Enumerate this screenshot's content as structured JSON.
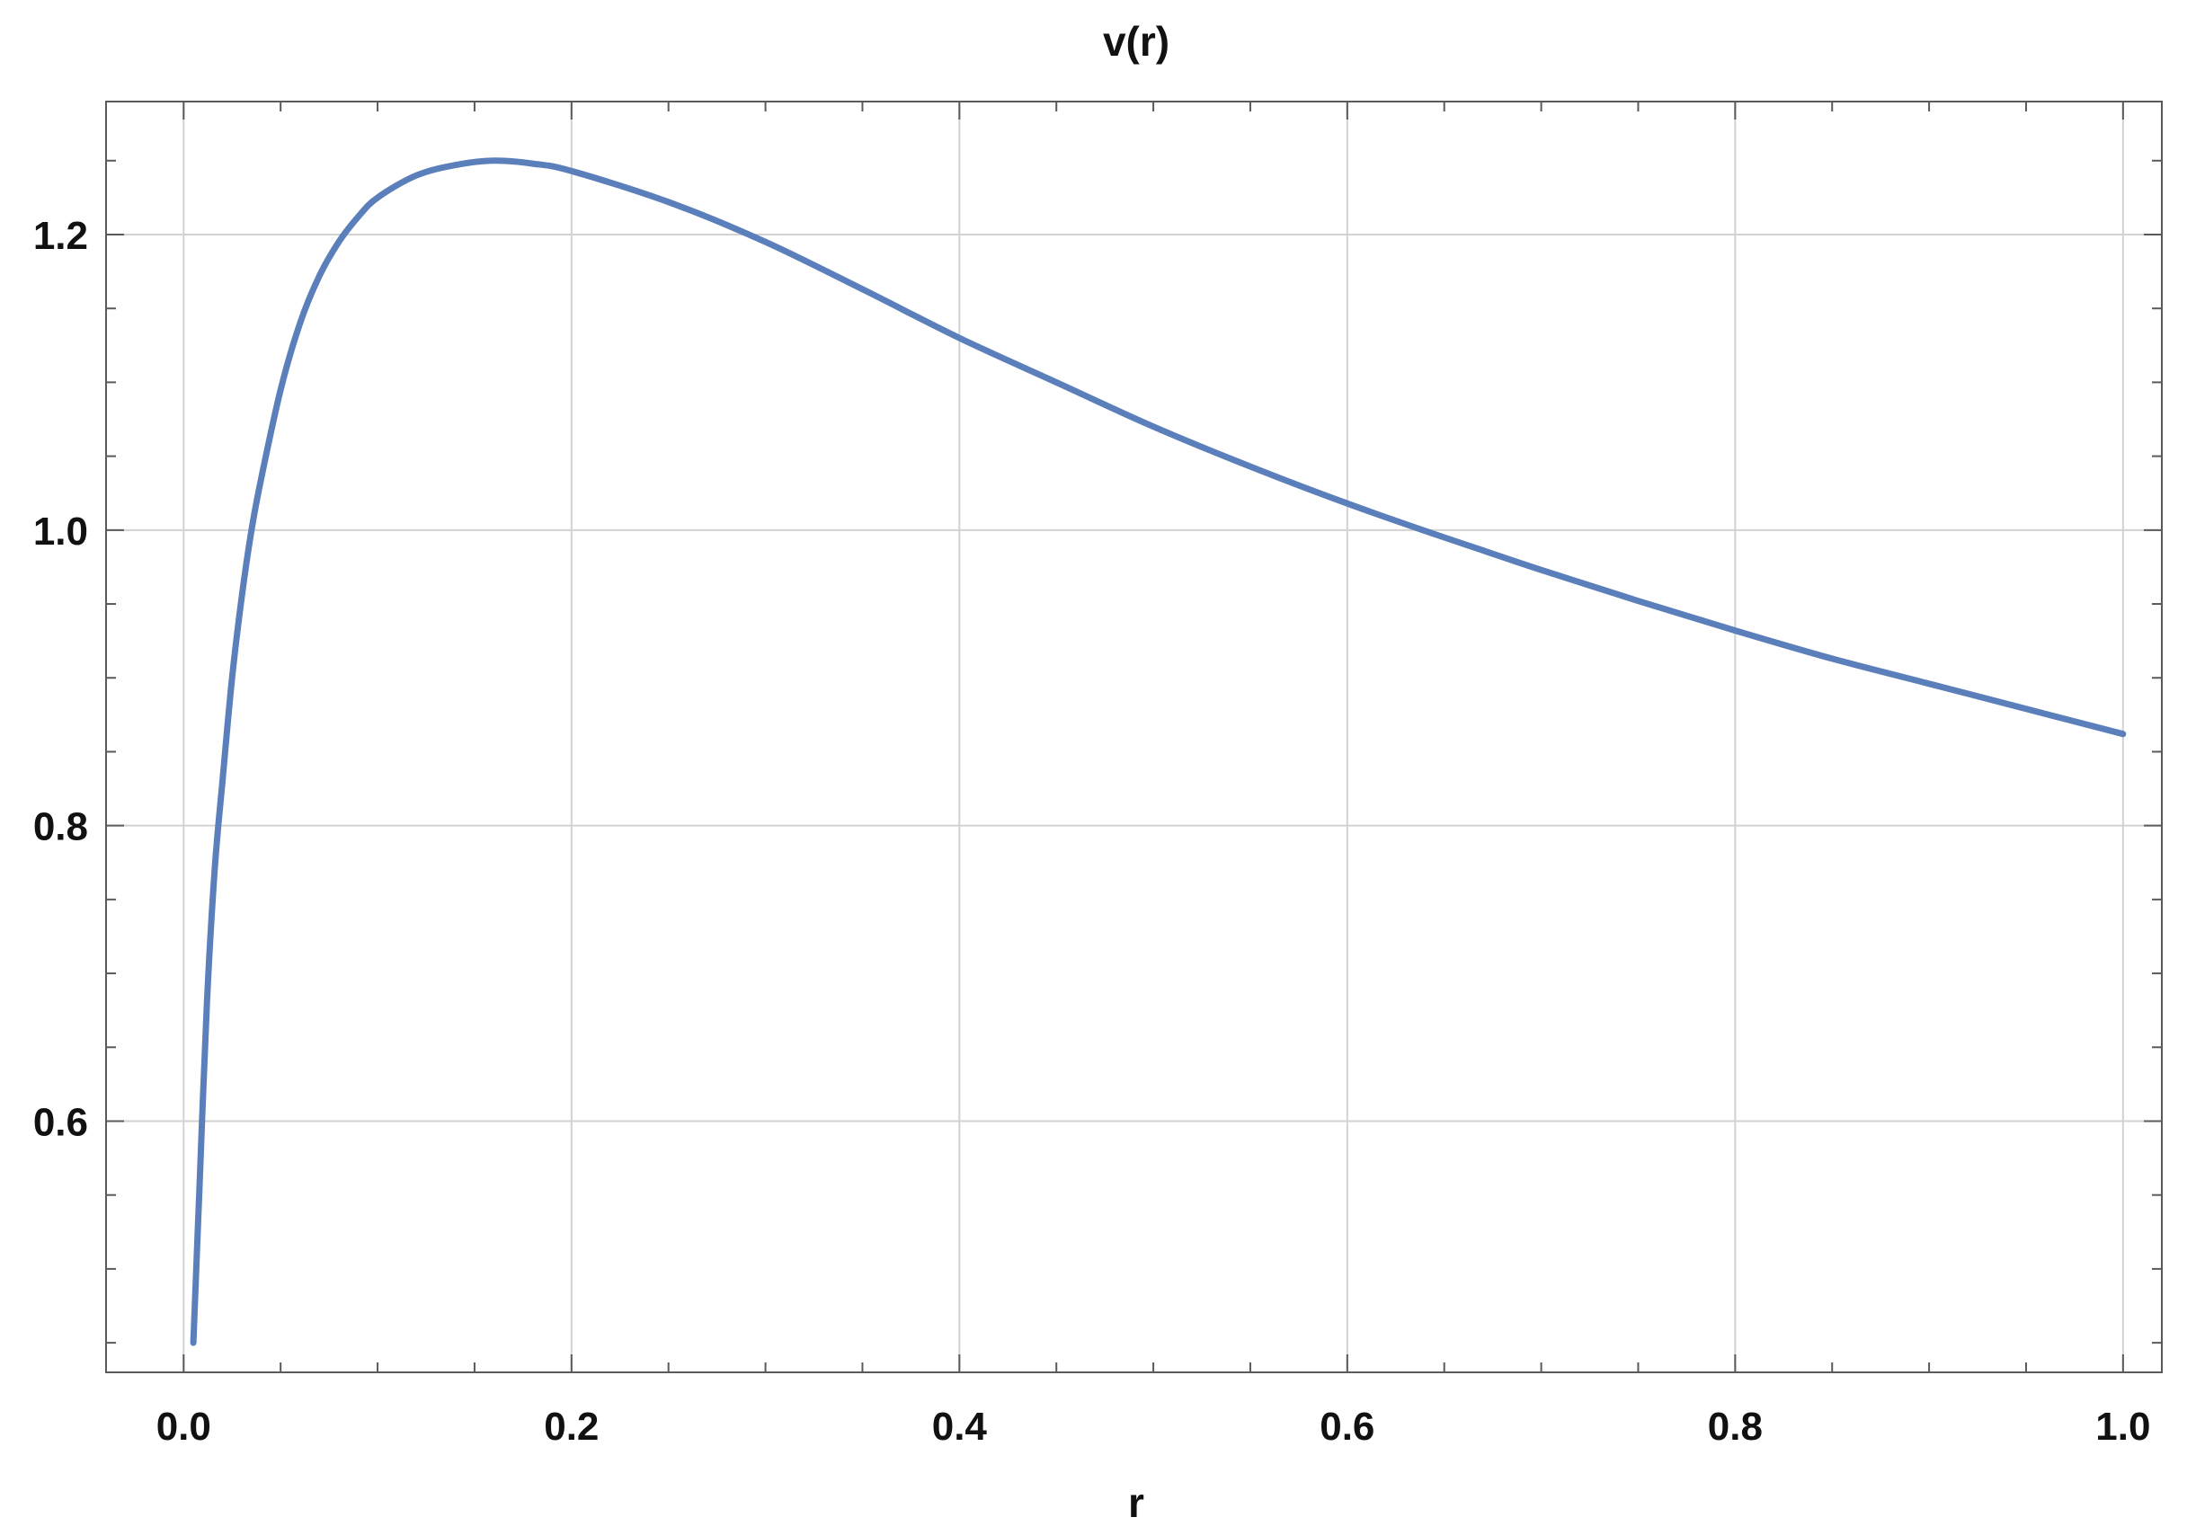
{
  "chart_data": {
    "type": "line",
    "title": "v(r)",
    "xlabel": "r",
    "ylabel": "",
    "xlim": [
      -0.04,
      1.02
    ],
    "ylim": [
      0.43,
      1.29
    ],
    "x_ticks": [
      0.0,
      0.2,
      0.4,
      0.6,
      0.8,
      1.0
    ],
    "x_tick_labels": [
      "0.0",
      "0.2",
      "0.4",
      "0.6",
      "0.8",
      "1.0"
    ],
    "x_minor_step": 0.05,
    "y_ticks": [
      0.6,
      0.8,
      1.0,
      1.2
    ],
    "y_tick_labels": [
      "0.6",
      "0.8",
      "1.0",
      "1.2"
    ],
    "y_minor_step": 0.05,
    "grid": true,
    "colors": {
      "line": "#5b7fba",
      "grid": "#d2d2d2",
      "frame": "#5a5a5a"
    },
    "series": [
      {
        "x": [
          0.005,
          0.008,
          0.012,
          0.016,
          0.02,
          0.025,
          0.03,
          0.035,
          0.04,
          0.05,
          0.06,
          0.07,
          0.08,
          0.09,
          0.1,
          0.12,
          0.14,
          0.16,
          0.18,
          0.2,
          0.25,
          0.3,
          0.35,
          0.4,
          0.45,
          0.5,
          0.55,
          0.6,
          0.65,
          0.7,
          0.75,
          0.8,
          0.85,
          0.9,
          0.95,
          1.0
        ],
        "y": [
          0.45,
          0.55,
          0.68,
          0.77,
          0.83,
          0.9,
          0.955,
          1.0,
          1.035,
          1.095,
          1.14,
          1.172,
          1.195,
          1.212,
          1.225,
          1.24,
          1.247,
          1.25,
          1.248,
          1.243,
          1.222,
          1.195,
          1.163,
          1.13,
          1.1,
          1.07,
          1.043,
          1.018,
          0.995,
          0.973,
          0.952,
          0.932,
          0.913,
          0.896,
          0.879,
          0.862
        ]
      }
    ]
  }
}
